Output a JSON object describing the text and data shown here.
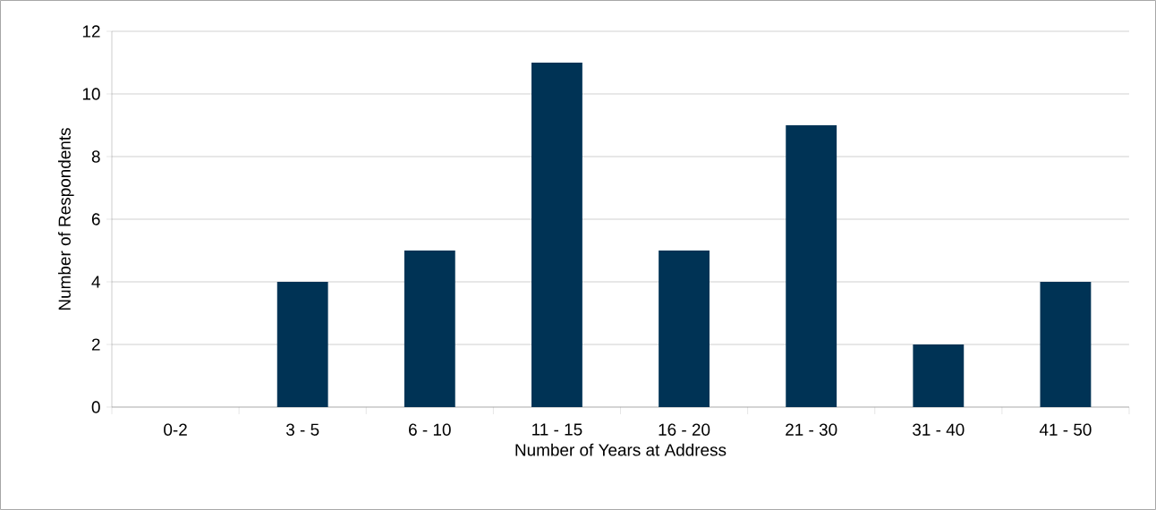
{
  "chart_data": {
    "type": "bar",
    "xlabel": "Number of Years at Address",
    "ylabel": "Number of Respondents",
    "categories": [
      "0-2",
      "3 - 5",
      "6 - 10",
      "11 - 15",
      "16 - 20",
      "21 - 30",
      "31 - 40",
      "41 - 50"
    ],
    "values": [
      0,
      4,
      5,
      11,
      5,
      9,
      2,
      4
    ],
    "color": "#003355",
    "ylim": [
      0,
      12
    ],
    "yticks": [
      0,
      2,
      4,
      6,
      8,
      10,
      12
    ],
    "grid": "y"
  }
}
